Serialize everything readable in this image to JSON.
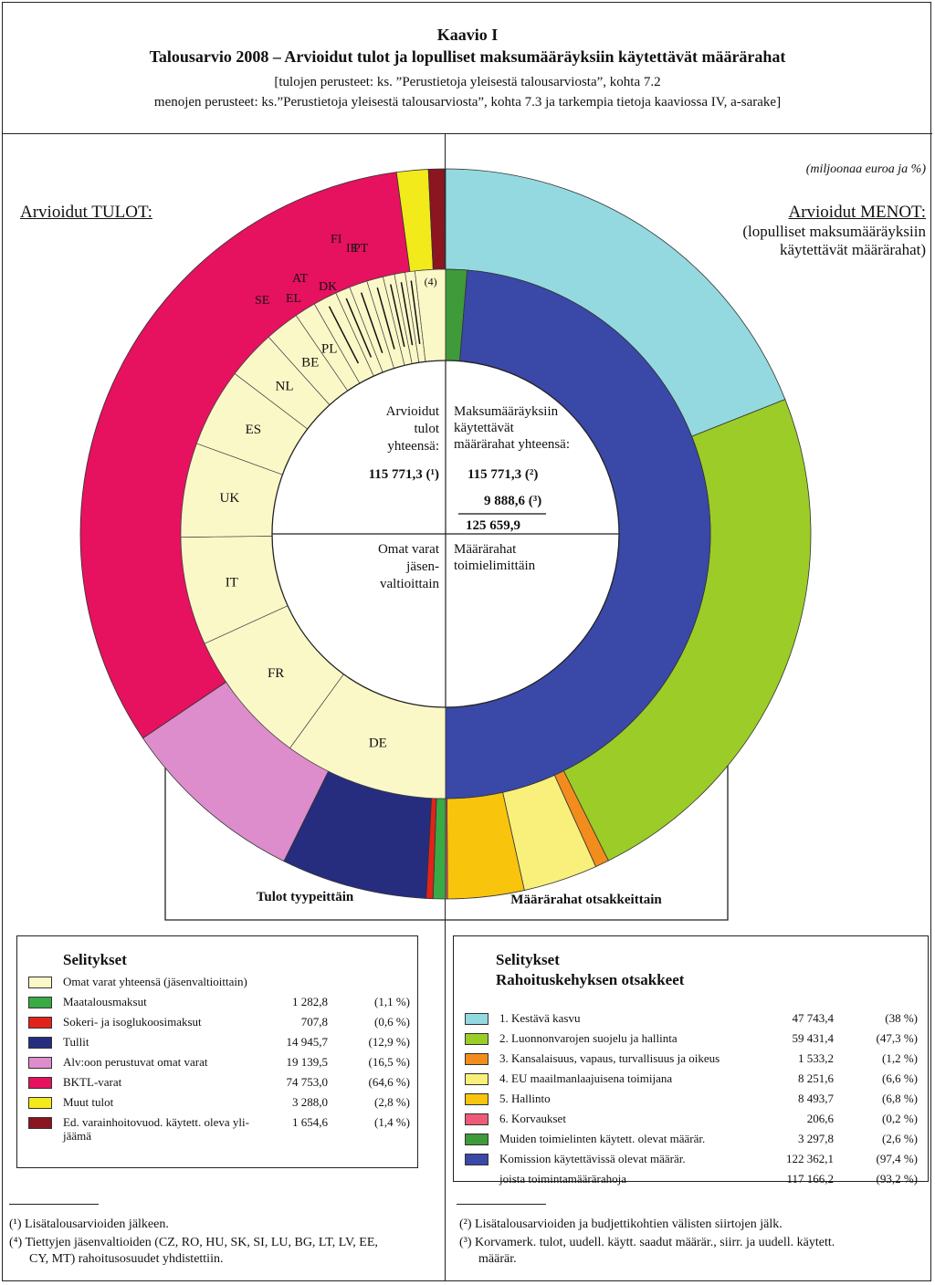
{
  "header": {
    "title": "Kaavio I",
    "subtitle": "Talousarvio 2008 – Arvioidut tulot ja lopulliset maksumääräyksiin käytettävät määrärahat",
    "note1": "[tulojen perusteet: ks. ”Perustietoja yleisestä talousarviosta”, kohta 7.2",
    "note2": "menojen perusteet: ks.”Perustietoja yleisestä talousarviosta”, kohta 7.3 ja tarkempia tietoja kaaviossa IV, a-sarake]"
  },
  "units": "(miljoonaa euroa ja %)",
  "left_heading": "Arvioidut TULOT:",
  "right_heading": "Arvioidut MENOT:",
  "right_heading_sub1": "(lopulliset maksumääräyksiin",
  "right_heading_sub2": "käytettävät määrärahat)",
  "center": {
    "left_top_1": "Arvioidut",
    "left_top_2": "tulot",
    "left_top_3": "yhteensä:",
    "left_total": "115 771,3 (¹)",
    "right_top_1": "Maksumääräyksiin",
    "right_top_2": "käytettävät",
    "right_top_3": "määrärahat yhteensä:",
    "right_val1": "115 771,3 (²)",
    "right_val2": "9 888,6 (³)",
    "right_sum": "125 659,9",
    "left_bottom_1": "Omat varat",
    "left_bottom_2": "jäsen-",
    "left_bottom_3": "valtioittain",
    "right_bottom_1": "Määrärahat",
    "right_bottom_2": "toimielimittäin"
  },
  "ring_captions": {
    "left": "Tulot tyypeittäin",
    "right": "Määrärahat otsakkeittain"
  },
  "member_state_labels": [
    "DE",
    "FR",
    "IT",
    "UK",
    "ES",
    "NL",
    "BE",
    "PL",
    "SE",
    "EL",
    "AT",
    "DK",
    "FI",
    "IE",
    "PT",
    "(4)"
  ],
  "chart_data": [
    {
      "type": "pie",
      "name": "Tulot tyypeittäin",
      "series": [
        {
          "name": "Maatalousmaksut",
          "value": 1282.8,
          "percent": 1.1,
          "color": "#3aaa45"
        },
        {
          "name": "Sokeri- ja isoglukoosimaksut",
          "value": 707.8,
          "percent": 0.6,
          "color": "#e2231a"
        },
        {
          "name": "Tullit",
          "value": 14945.7,
          "percent": 12.9,
          "color": "#262c7e"
        },
        {
          "name": "Alv:oon perustuvat omat varat",
          "value": 19139.5,
          "percent": 16.5,
          "color": "#dd8ccc"
        },
        {
          "name": "BKTL-varat",
          "value": 74753.0,
          "percent": 64.6,
          "color": "#e6115f"
        },
        {
          "name": "Muut tulot",
          "value": 3288.0,
          "percent": 2.8,
          "color": "#f2ea1a"
        },
        {
          "name": "Ed. varainhoitovuod. käytett. oleva ylijäämä",
          "value": 1654.6,
          "percent": 1.4,
          "color": "#8b1520"
        }
      ]
    },
    {
      "type": "pie",
      "name": "Omat varat jäsenvaltioittain",
      "series": [
        {
          "name": "DE",
          "percent": 20.0
        },
        {
          "name": "FR",
          "percent": 16.4
        },
        {
          "name": "IT",
          "percent": 13.2
        },
        {
          "name": "UK",
          "percent": 11.5
        },
        {
          "name": "ES",
          "percent": 9.6
        },
        {
          "name": "NL",
          "percent": 6.0
        },
        {
          "name": "BE",
          "percent": 4.2
        },
        {
          "name": "PL",
          "percent": 2.6
        },
        {
          "name": "SE",
          "percent": 2.9
        },
        {
          "name": "EL",
          "percent": 1.8
        },
        {
          "name": "AT",
          "percent": 2.2
        },
        {
          "name": "DK",
          "percent": 2.0
        },
        {
          "name": "FI",
          "percent": 1.4
        },
        {
          "name": "IE",
          "percent": 1.3
        },
        {
          "name": "PT",
          "percent": 1.2
        },
        {
          "name": "(4)",
          "percent": 3.7
        }
      ]
    },
    {
      "type": "pie",
      "name": "Määrärahat otsakkeittain",
      "series": [
        {
          "name": "1. Kestävä kasvu",
          "value": 47743.4,
          "percent": 38,
          "color": "#94d9e0"
        },
        {
          "name": "2. Luonnonvarojen suojelu ja hallinta",
          "value": 59431.4,
          "percent": 47.3,
          "color": "#9ccc28"
        },
        {
          "name": "3. Kansalaisuus, vapaus, turvallisuus ja oikeus",
          "value": 1533.2,
          "percent": 1.2,
          "color": "#f28c1c"
        },
        {
          "name": "4. EU maailmanlaajuisena toimijana",
          "value": 8251.6,
          "percent": 6.6,
          "color": "#f8f07a"
        },
        {
          "name": "5. Hallinto",
          "value": 8493.7,
          "percent": 6.8,
          "color": "#f8c40c"
        },
        {
          "name": "6. Korvaukset",
          "value": 206.6,
          "percent": 0.2,
          "color": "#ee5a78"
        }
      ]
    },
    {
      "type": "pie",
      "name": "Määrärahat toimielimittäin",
      "series": [
        {
          "name": "Muiden toimielinten käytett. olevat määrär.",
          "value": 3297.8,
          "percent": 2.6,
          "color": "#3f9a3a"
        },
        {
          "name": "Komission käytettävissä olevat määrär.",
          "value": 122362.1,
          "percent": 97.4,
          "color": "#3a48a8"
        }
      ]
    }
  ],
  "legend_left": {
    "title": "Selitykset",
    "rows": [
      {
        "label": "Omat varat yhteensä (jäsenvaltioittain)",
        "value": "",
        "pct": "",
        "color": "#fbf8c8"
      },
      {
        "label": "Maatalousmaksut",
        "value": "1 282,8",
        "pct": "(1,1 %)",
        "color": "#3aaa45"
      },
      {
        "label": "Sokeri- ja isoglukoosimaksut",
        "value": "707,8",
        "pct": "(0,6 %)",
        "color": "#e2231a"
      },
      {
        "label": "Tullit",
        "value": "14 945,7",
        "pct": "(12,9 %)",
        "color": "#262c7e"
      },
      {
        "label": "Alv:oon perustuvat omat varat",
        "value": "19 139,5",
        "pct": "(16,5 %)",
        "color": "#dd8ccc"
      },
      {
        "label": "BKTL-varat",
        "value": "74 753,0",
        "pct": "(64,6 %)",
        "color": "#e6115f"
      },
      {
        "label": "Muut tulot",
        "value": "3 288,0",
        "pct": "(2,8 %)",
        "color": "#f2ea1a"
      },
      {
        "label": "Ed. varainhoitovuod. käytett. oleva yli-",
        "label2": "jäämä",
        "value": "1 654,6",
        "pct": "(1,4 %)",
        "color": "#8b1520"
      }
    ]
  },
  "legend_right": {
    "title": "Selitykset",
    "title2": "Rahoituskehyksen otsakkeet",
    "rows": [
      {
        "label": "1. Kestävä kasvu",
        "value": "47 743,4",
        "pct": "(38 %)",
        "color": "#94d9e0"
      },
      {
        "label": "2. Luonnonvarojen suojelu ja hallinta",
        "value": "59 431,4",
        "pct": "(47,3 %)",
        "color": "#9ccc28"
      },
      {
        "label": "3. Kansalaisuus, vapaus, turvallisuus ja oikeus",
        "value": "1 533,2",
        "pct": "(1,2 %)",
        "color": "#f28c1c"
      },
      {
        "label": "4. EU maailmanlaajuisena toimijana",
        "value": "8 251,6",
        "pct": "(6,6 %)",
        "color": "#f8f07a"
      },
      {
        "label": "5. Hallinto",
        "value": "8 493,7",
        "pct": "(6,8 %)",
        "color": "#f8c40c"
      },
      {
        "label": "6. Korvaukset",
        "value": "206,6",
        "pct": "(0,2 %)",
        "color": "#ee5a78"
      },
      {
        "label": "Muiden toimielinten käytett. olevat määrär.",
        "value": "3 297,8",
        "pct": "(2,6 %)",
        "color": "#3f9a3a"
      },
      {
        "label": "Komission käytettävissä olevat määrär.",
        "value": "122 362,1",
        "pct": "(97,4 %)",
        "color": "#3a48a8"
      },
      {
        "label": "joista toimintamäärärahoja",
        "value": "117 166,2",
        "pct": "(93,2 %)",
        "color": ""
      }
    ]
  },
  "footnotes_left": [
    "(¹) Lisätalousarvioiden jälkeen.",
    "(⁴) Tiettyjen jäsenvaltioiden (CZ, RO, HU, SK, SI, LU, BG, LT, LV, EE,",
    "CY, MT) rahoitusosuudet yhdistettiin."
  ],
  "footnotes_right": [
    "(²) Lisätalousarvioiden ja budjettikohtien välisten siirtojen jälk.",
    "(³) Korvamerk. tulot, uudell. käytt. saadut määrär., siirr. ja uudell. käytett.",
    "määrär."
  ]
}
